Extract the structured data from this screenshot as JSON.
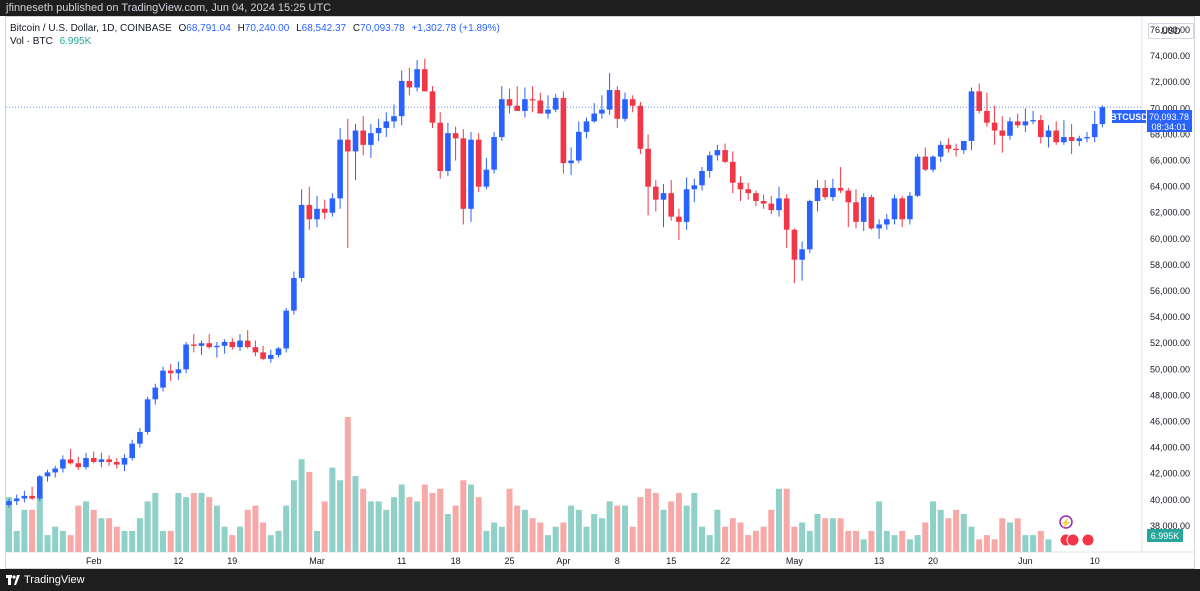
{
  "header": {
    "text": "jfinneseth published on TradingView.com, Jun 04, 2024 15:25 UTC"
  },
  "legend": {
    "symbol": "Bitcoin / U.S. Dollar, 1D, COINBASE",
    "open_label": "O",
    "open": "68,791.04",
    "high_label": "H",
    "high": "70,240.00",
    "low_label": "L",
    "low": "68,542.37",
    "close_label": "C",
    "close": "70,093.78",
    "change": "+1,302.78 (+1.89%)",
    "vol_label": "Vol · BTC",
    "vol_value": "6.995K"
  },
  "currency": "USD",
  "footer": {
    "brand": "TradingView"
  },
  "colors": {
    "up": "#2962ff",
    "down": "#f23645",
    "vol_up": "#8fd1c9",
    "vol_down": "#f7a9a7"
  },
  "chart_data": {
    "type": "candlestick",
    "symbol": "BTCUSD",
    "price_tag": "70,093.78",
    "countdown": "08:34:01",
    "volume_tag": "6.995K",
    "ylim": [
      36000,
      77000
    ],
    "y_ticks": [
      "76,000.00",
      "74,000.00",
      "72,000.00",
      "70,000.00",
      "68,000.00",
      "66,000.00",
      "64,000.00",
      "62,000.00",
      "60,000.00",
      "58,000.00",
      "56,000.00",
      "54,000.00",
      "52,000.00",
      "50,000.00",
      "48,000.00",
      "46,000.00",
      "44,000.00",
      "42,000.00",
      "40,000.00",
      "38,000.00"
    ],
    "x_ticks": [
      {
        "i": 11,
        "label": "Feb"
      },
      {
        "i": 22,
        "label": "12"
      },
      {
        "i": 29,
        "label": "19"
      },
      {
        "i": 40,
        "label": "Mar"
      },
      {
        "i": 51,
        "label": "11"
      },
      {
        "i": 58,
        "label": "18"
      },
      {
        "i": 65,
        "label": "25"
      },
      {
        "i": 72,
        "label": "Apr"
      },
      {
        "i": 79,
        "label": "8"
      },
      {
        "i": 86,
        "label": "15"
      },
      {
        "i": 93,
        "label": "22"
      },
      {
        "i": 102,
        "label": "May"
      },
      {
        "i": 113,
        "label": "13"
      },
      {
        "i": 120,
        "label": "20"
      },
      {
        "i": 132,
        "label": "Jun"
      },
      {
        "i": 141,
        "label": "10"
      }
    ],
    "ohlc": [
      [
        39600,
        40100,
        39400,
        39900
      ],
      [
        39900,
        40400,
        39600,
        40100
      ],
      [
        40100,
        40700,
        39800,
        40300
      ],
      [
        40300,
        41000,
        40000,
        40100
      ],
      [
        40100,
        41900,
        39900,
        41800
      ],
      [
        41800,
        42300,
        41400,
        42100
      ],
      [
        42100,
        42600,
        41700,
        42400
      ],
      [
        42400,
        43400,
        42100,
        43100
      ],
      [
        43100,
        43900,
        42700,
        42800
      ],
      [
        42800,
        43300,
        42300,
        42500
      ],
      [
        42500,
        43600,
        42300,
        43200
      ],
      [
        43200,
        43700,
        42800,
        42900
      ],
      [
        42900,
        43600,
        42500,
        43100
      ],
      [
        43100,
        43400,
        42600,
        42900
      ],
      [
        42900,
        43200,
        42400,
        42700
      ],
      [
        42700,
        43500,
        42200,
        43200
      ],
      [
        43200,
        44600,
        43000,
        44300
      ],
      [
        44300,
        45500,
        44000,
        45200
      ],
      [
        45200,
        47900,
        45000,
        47700
      ],
      [
        47700,
        48900,
        47300,
        48600
      ],
      [
        48600,
        50200,
        48300,
        49900
      ],
      [
        49900,
        50400,
        49100,
        49700
      ],
      [
        49700,
        50600,
        49200,
        50000
      ],
      [
        50000,
        52100,
        49700,
        51900
      ],
      [
        51900,
        52700,
        51300,
        51800
      ],
      [
        51800,
        52200,
        51100,
        52000
      ],
      [
        52000,
        52700,
        51600,
        51700
      ],
      [
        51700,
        52100,
        50900,
        51800
      ],
      [
        51800,
        52300,
        51200,
        52100
      ],
      [
        52100,
        52400,
        51500,
        51700
      ],
      [
        51700,
        52700,
        51400,
        52200
      ],
      [
        52200,
        53000,
        51600,
        51700
      ],
      [
        51700,
        52200,
        51000,
        51300
      ],
      [
        51300,
        51800,
        50700,
        50800
      ],
      [
        50800,
        51500,
        50500,
        51100
      ],
      [
        51100,
        51700,
        50900,
        51600
      ],
      [
        51600,
        54700,
        51300,
        54500
      ],
      [
        54500,
        57500,
        54200,
        57000
      ],
      [
        57000,
        63800,
        56700,
        62600
      ],
      [
        62600,
        64000,
        60700,
        61500
      ],
      [
        61500,
        63300,
        60900,
        62300
      ],
      [
        62300,
        63000,
        61500,
        62000
      ],
      [
        62000,
        63500,
        61700,
        63100
      ],
      [
        63100,
        68500,
        62300,
        67600
      ],
      [
        67600,
        69200,
        59300,
        66700
      ],
      [
        66700,
        68800,
        64500,
        68300
      ],
      [
        68300,
        69400,
        66400,
        67200
      ],
      [
        67200,
        68800,
        66200,
        68100
      ],
      [
        68100,
        69200,
        67500,
        68500
      ],
      [
        68500,
        69700,
        67800,
        69000
      ],
      [
        69000,
        70300,
        68500,
        69400
      ],
      [
        69400,
        72900,
        68700,
        72100
      ],
      [
        72100,
        73100,
        71000,
        71600
      ],
      [
        71600,
        73700,
        71300,
        73000
      ],
      [
        73000,
        73800,
        71300,
        71300
      ],
      [
        71300,
        71700,
        68500,
        68900
      ],
      [
        68900,
        69700,
        64600,
        65200
      ],
      [
        65200,
        68900,
        64800,
        68100
      ],
      [
        68100,
        68600,
        66000,
        67700
      ],
      [
        67700,
        68400,
        61100,
        62300
      ],
      [
        62300,
        68200,
        61300,
        67600
      ],
      [
        67600,
        68100,
        63600,
        64000
      ],
      [
        64000,
        66200,
        63800,
        65300
      ],
      [
        65300,
        68200,
        65000,
        67800
      ],
      [
        67800,
        71700,
        67500,
        70700
      ],
      [
        70700,
        71500,
        69600,
        70200
      ],
      [
        70200,
        71700,
        69800,
        69800
      ],
      [
        69800,
        71600,
        69300,
        70700
      ],
      [
        70700,
        71700,
        69700,
        70600
      ],
      [
        70600,
        71200,
        69900,
        69600
      ],
      [
        69600,
        71000,
        69200,
        69900
      ],
      [
        69900,
        71100,
        69700,
        70800
      ],
      [
        70800,
        71300,
        65000,
        65800
      ],
      [
        65800,
        67000,
        64900,
        66000
      ],
      [
        66000,
        69000,
        65800,
        68200
      ],
      [
        68200,
        69300,
        67700,
        69000
      ],
      [
        69000,
        70400,
        68900,
        69600
      ],
      [
        69600,
        71000,
        69200,
        69900
      ],
      [
        69900,
        72700,
        69500,
        71400
      ],
      [
        71400,
        71700,
        68500,
        69200
      ],
      [
        69200,
        71200,
        69000,
        70700
      ],
      [
        70700,
        71000,
        69700,
        70200
      ],
      [
        70200,
        70500,
        66500,
        66900
      ],
      [
        66900,
        68000,
        61800,
        64000
      ],
      [
        64000,
        64500,
        62100,
        63000
      ],
      [
        63000,
        64200,
        60900,
        63500
      ],
      [
        63500,
        64500,
        61400,
        61700
      ],
      [
        61700,
        62300,
        59900,
        61300
      ],
      [
        61300,
        64700,
        60700,
        63800
      ],
      [
        63800,
        64600,
        62800,
        64100
      ],
      [
        64100,
        65500,
        63700,
        65200
      ],
      [
        65200,
        66700,
        64700,
        66400
      ],
      [
        66400,
        67200,
        66000,
        66800
      ],
      [
        66800,
        67300,
        65800,
        65900
      ],
      [
        65900,
        66700,
        63500,
        64300
      ],
      [
        64300,
        64800,
        62900,
        63800
      ],
      [
        63800,
        64300,
        63000,
        63500
      ],
      [
        63500,
        63700,
        62500,
        62900
      ],
      [
        62900,
        63400,
        62300,
        62700
      ],
      [
        62700,
        63300,
        61900,
        62200
      ],
      [
        62200,
        64000,
        61700,
        63100
      ],
      [
        63100,
        63400,
        59300,
        60700
      ],
      [
        60700,
        60800,
        56600,
        58400
      ],
      [
        58400,
        59800,
        56800,
        59200
      ],
      [
        59200,
        63000,
        58900,
        62900
      ],
      [
        62900,
        64500,
        62100,
        63900
      ],
      [
        63900,
        64500,
        63000,
        63200
      ],
      [
        63200,
        64600,
        62900,
        63900
      ],
      [
        63900,
        65500,
        63500,
        63700
      ],
      [
        63700,
        63900,
        60900,
        62800
      ],
      [
        62800,
        63800,
        60800,
        61300
      ],
      [
        61300,
        63500,
        60600,
        63200
      ],
      [
        63200,
        63400,
        60700,
        60800
      ],
      [
        60800,
        61500,
        60000,
        61100
      ],
      [
        61100,
        61900,
        60700,
        61500
      ],
      [
        61500,
        63400,
        61100,
        63100
      ],
      [
        63100,
        63300,
        60900,
        61500
      ],
      [
        61500,
        63600,
        61100,
        63300
      ],
      [
        63300,
        66500,
        63200,
        66300
      ],
      [
        66300,
        67000,
        65200,
        65300
      ],
      [
        65300,
        66400,
        65100,
        66300
      ],
      [
        66300,
        67500,
        65900,
        67200
      ],
      [
        67200,
        67700,
        66600,
        66900
      ],
      [
        66900,
        67300,
        66300,
        66800
      ],
      [
        66800,
        67400,
        66500,
        67500
      ],
      [
        67500,
        71600,
        66800,
        71300
      ],
      [
        71300,
        71900,
        69600,
        69800
      ],
      [
        69800,
        71200,
        68600,
        68900
      ],
      [
        68900,
        70200,
        67200,
        68300
      ],
      [
        68300,
        69400,
        66600,
        67900
      ],
      [
        67900,
        69300,
        67600,
        69000
      ],
      [
        69000,
        69600,
        68500,
        68700
      ],
      [
        68700,
        70000,
        68200,
        69000
      ],
      [
        69000,
        69800,
        68800,
        69100
      ],
      [
        69100,
        69500,
        67300,
        67800
      ],
      [
        67800,
        68700,
        67000,
        68300
      ],
      [
        68300,
        69000,
        67200,
        67400
      ],
      [
        67400,
        69100,
        67200,
        67800
      ],
      [
        67800,
        68800,
        66500,
        67500
      ],
      [
        67500,
        67900,
        67100,
        67700
      ],
      [
        67700,
        68200,
        67400,
        67800
      ],
      [
        67800,
        69800,
        67400,
        68800
      ],
      [
        68791,
        70240,
        68542,
        70094
      ]
    ],
    "volume": [
      13,
      5,
      10,
      10,
      13,
      4,
      6,
      5,
      4,
      11,
      12,
      10,
      8,
      8,
      6,
      5,
      5,
      8,
      12,
      14,
      5,
      5,
      14,
      13,
      14,
      14,
      13,
      11,
      6,
      4,
      6,
      10,
      11,
      7,
      4,
      5,
      11,
      17,
      22,
      19,
      5,
      12,
      20,
      17,
      32,
      18,
      15,
      12,
      12,
      10,
      13,
      16,
      13,
      12,
      16,
      14,
      15,
      9,
      11,
      17,
      16,
      13,
      5,
      7,
      6,
      15,
      11,
      10,
      8,
      7,
      4,
      6,
      7,
      11,
      10,
      6,
      9,
      8,
      12,
      11,
      11,
      6,
      13,
      15,
      14,
      10,
      12,
      14,
      11,
      14,
      6,
      4,
      10,
      6,
      8,
      7,
      4,
      5,
      6,
      10,
      15,
      15,
      6,
      7,
      5,
      9,
      8,
      8,
      8,
      5,
      5,
      3,
      5,
      12,
      5,
      4,
      5,
      3,
      4,
      7,
      12,
      10,
      8,
      10,
      9,
      6,
      3,
      4,
      3,
      8,
      7,
      8,
      4,
      4,
      5,
      3
    ]
  }
}
